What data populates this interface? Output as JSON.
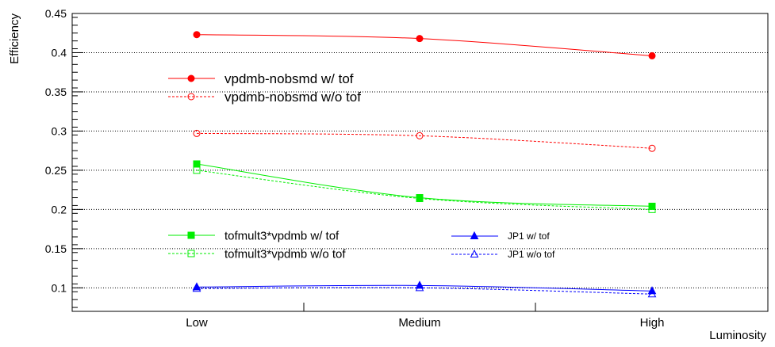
{
  "chart_data": {
    "type": "line",
    "title": "",
    "xlabel": "Luminosity",
    "ylabel": "Efficiency",
    "categories": [
      "Low",
      "Medium",
      "High"
    ],
    "ylim": [
      0.07,
      0.45
    ],
    "yticks": [
      0.1,
      0.15,
      0.2,
      0.25,
      0.3,
      0.35,
      0.4,
      0.45
    ],
    "ytick_labels": [
      "0.1",
      "0.15",
      "0.2",
      "0.25",
      "0.3",
      "0.35",
      "0.4",
      "0.45"
    ],
    "grid": {
      "horizontal": true,
      "vertical": false,
      "style": "dotted"
    },
    "series": [
      {
        "name": "vpdmb-nobsmd w/ tof",
        "values": [
          0.423,
          0.418,
          0.396
        ],
        "color": "#ff0000",
        "marker": "filled-circle",
        "dashed": false
      },
      {
        "name": "vpdmb-nobsmd w/o tof",
        "values": [
          0.297,
          0.294,
          0.278
        ],
        "color": "#ff0000",
        "marker": "open-circle",
        "dashed": true
      },
      {
        "name": "tofmult3*vpdmb w/ tof",
        "values": [
          0.258,
          0.215,
          0.204
        ],
        "color": "#00ee00",
        "marker": "filled-square",
        "dashed": false
      },
      {
        "name": "tofmult3*vpdmb w/o tof",
        "values": [
          0.25,
          0.214,
          0.2
        ],
        "color": "#00ee00",
        "marker": "open-square",
        "dashed": true
      },
      {
        "name": "JP1 w/ tof",
        "values": [
          0.101,
          0.103,
          0.096
        ],
        "color": "#0000ff",
        "marker": "filled-triangle",
        "dashed": false
      },
      {
        "name": "JP1 w/o tof",
        "values": [
          0.099,
          0.1,
          0.092
        ],
        "color": "#0000ff",
        "marker": "open-triangle",
        "dashed": true
      }
    ],
    "legends": [
      {
        "position": "upper-left",
        "entries": [
          0,
          1
        ]
      },
      {
        "position": "lower-left",
        "entries": [
          2,
          3
        ]
      },
      {
        "position": "lower-right",
        "entries": [
          4,
          5
        ]
      }
    ]
  }
}
